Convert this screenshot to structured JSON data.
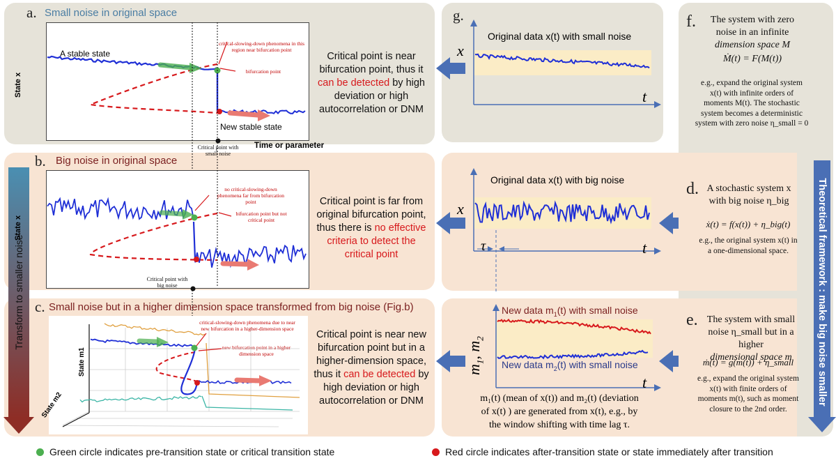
{
  "colors": {
    "gray_panel": "#e6e3d9",
    "peach_panel": "#f8e4d3",
    "arrow_blue": "#4a6fb5",
    "series_blue": "#1f2fd6",
    "bifurcation_red": "#d7191c",
    "green_dot": "#4caf50",
    "red_dot": "#d7191c",
    "gradient_top": "#4a8fb2",
    "gradient_bottom": "#8e2d25"
  },
  "panel_a": {
    "letter": "a.",
    "title": "Small noise in original space",
    "stable_label": "A stable state",
    "new_stable_label": "New stable state",
    "ylabel": "State x",
    "xlabel": "Time or parameter",
    "ann_csd": "critical-slowing-down phenomena in this region near bifurcation point",
    "ann_bif": "bifurcation point",
    "critical_label": "Critical point with small noise",
    "text_1": "Critical point is near",
    "text_2": "bifurcation point, thus it",
    "text_3a": "",
    "text_3_red": "can be detected",
    "text_3b": "by high",
    "text_4": "deviation or high",
    "text_5": "autocorrelation or DNM"
  },
  "panel_b": {
    "letter": "b.",
    "title": "Big noise in original space",
    "ylabel": "State x",
    "ann_no_csd": "no critical-slowing-down phenomena far from bifurcation point",
    "ann_bif": "bifurcation point but not critical point",
    "critical_label": "Critical point with big noise",
    "text_1": "Critical point is far from",
    "text_2": "original bifurcation point,",
    "text_3a": "thus there is",
    "text_3_red": "no effective",
    "text_4_red": "criteria to detect the",
    "text_5_red": "critical point"
  },
  "panel_c": {
    "letter": "c.",
    "title": "Small noise but in a higher dimension space transformed from big noise (Fig.b)",
    "ylabel": "State m1",
    "xlabel": "State m2",
    "ann_csd": "critical-slowing-down phenomena due to near new bifurcation in a higher-dimension space",
    "ann_bif": "new bifurcation point in a higher dimension space",
    "text_1": "Critical point is near new",
    "text_2": "bifurcation point but in a",
    "text_3": "higher-dimension space,",
    "text_4a": "thus it",
    "text_4_red": "can be detected",
    "text_4b": "by",
    "text_5": "high deviation  or  high",
    "text_6": "autocorrelation or DNM"
  },
  "side_label": "Transform to smaller noise",
  "panel_g": {
    "letter": "g.",
    "title": "Original data x(t) with small noise",
    "y": "x",
    "x": "t"
  },
  "panel_mid": {
    "title": "Original data x(t) with big noise",
    "y": "x",
    "x": "t",
    "tau": "τ"
  },
  "panel_bot": {
    "title_1": "New data m",
    "sub_1": "1",
    "title_1b": "(t) with small noise",
    "title_2": "New data m",
    "sub_2": "2",
    "title_2b": "(t) with small noise",
    "y": "m",
    "y_sub1": "1",
    "y_sub2": "2",
    "x": "t",
    "caption_1": "m₁(t) (mean of x(t)) and m₂(t) (deviation",
    "caption_2": "of x(t) ) are generated from x(t), e.g., by",
    "caption_3": "the window shifting with time lag τ."
  },
  "panel_f": {
    "letter": "f.",
    "line1": "The system with zero",
    "line2": "noise in an infinite",
    "line3": "dimension space M",
    "eq": "Ṁ(t) = F(M(t))",
    "desc_1": "e.g., expand the original system",
    "desc_2": "x(t) with infinite orders of",
    "desc_3": "moments M(t). The stochastic",
    "desc_4": "system becomes a deterministic",
    "desc_5": "system with zero noise η_small = 0"
  },
  "panel_d": {
    "letter": "d.",
    "line1": "A stochastic system x",
    "line2": "with big noise η_big",
    "eq": "ẋ(t) = f(x(t)) + η_big(t)",
    "desc_1": "e.g., the original system x(t) in",
    "desc_2": "a one-dimensional space."
  },
  "panel_e": {
    "letter": "e.",
    "line1": "The system with small",
    "line2": "noise η_small but in a higher",
    "line3": "dimensional space m",
    "eq": "ṁ(t) = g(m(t)) + η_small",
    "desc_1": "e.g., expand the original system",
    "desc_2": "x(t) with finite orders of",
    "desc_3": "moments m(t), such as moment",
    "desc_4": "closure to the 2nd order."
  },
  "vertical_label": "Theoretical framework : make big noise smaller",
  "legend": {
    "green": "Green circle indicates pre-transition state or critical transition state",
    "red": "Red circle indicates after-transition state or state immediately after transition"
  }
}
